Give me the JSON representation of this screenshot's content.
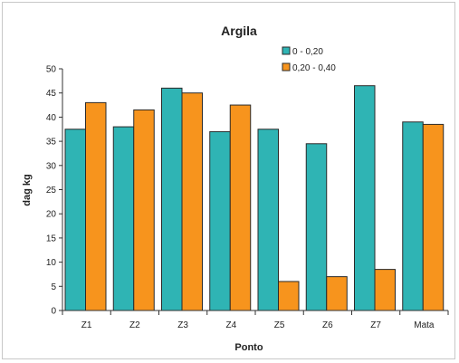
{
  "chart_data": {
    "type": "bar",
    "title": "Argila",
    "xlabel": "Ponto",
    "ylabel": "dag kg",
    "categories": [
      "Z1",
      "Z2",
      "Z3",
      "Z4",
      "Z5",
      "Z6",
      "Z7",
      "Mata"
    ],
    "series": [
      {
        "name": "0 - 0,20",
        "color": "#2fb4b4",
        "values": [
          37.5,
          38,
          46,
          37,
          37.5,
          34.5,
          46.5,
          39
        ]
      },
      {
        "name": "0,20 - 0,40",
        "color": "#f7941d",
        "values": [
          43,
          41.5,
          45,
          42.5,
          6,
          7,
          8.5,
          38.5
        ]
      }
    ],
    "ylim": [
      0,
      50
    ],
    "yticks": [
      "0",
      "5",
      "10",
      "15",
      "20",
      "25",
      "30",
      "35",
      "40",
      "45",
      "50"
    ],
    "grid": false,
    "legend_position": "top-right"
  }
}
